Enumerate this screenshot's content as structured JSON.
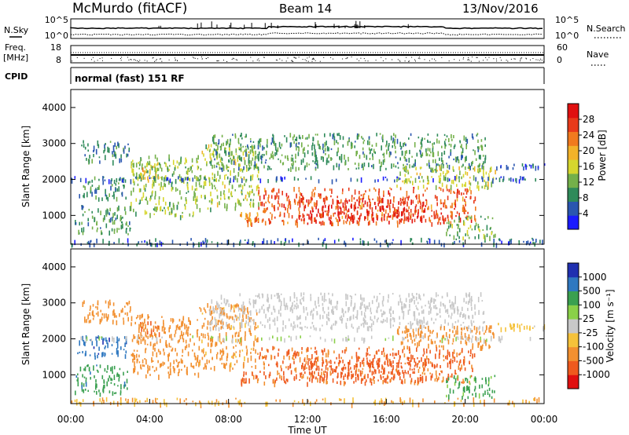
{
  "header": {
    "station": "McMurdo (fitACF)",
    "beam": "Beam 14",
    "date": "13/Nov/2016"
  },
  "noise_panel": {
    "left_label": "N.Sky",
    "right_label": "N.Search",
    "left_ticks": [
      "10^5",
      "10^0"
    ],
    "right_ticks": [
      "10^5",
      "10^0"
    ]
  },
  "freq_panel": {
    "left_label_line1": "Freq.",
    "left_label_line2": "[MHz]",
    "right_label": "Nave",
    "left_ticks": [
      "18",
      "8"
    ],
    "right_ticks": [
      "60",
      "0"
    ]
  },
  "cpid": {
    "label": "CPID",
    "mode": "normal (fast) 151 RF"
  },
  "x_axis": {
    "label": "Time UT",
    "ticks": [
      "00:00",
      "04:00",
      "08:00",
      "12:00",
      "16:00",
      "20:00",
      "00:00"
    ]
  },
  "power_panel": {
    "ylabel": "Slant Range [km]",
    "yticks": [
      "1000",
      "2000",
      "3000",
      "4000"
    ],
    "cbar_label": "Power [dB]",
    "cbar_ticks": [
      "4",
      "8",
      "12",
      "16",
      "20",
      "24",
      "28"
    ],
    "cbar_colors": [
      "#1a1aff",
      "#2a56b0",
      "#2f8a5a",
      "#74b04a",
      "#d6d62e",
      "#f2b22a",
      "#f07a1e",
      "#e83a1a",
      "#e01010"
    ]
  },
  "velocity_panel": {
    "ylabel": "Slant Range [km]",
    "yticks": [
      "1000",
      "2000",
      "3000",
      "4000"
    ],
    "cbar_label": "Velocity [m s⁻¹]",
    "cbar_ticks": [
      "1000",
      "500",
      "100",
      "25",
      "-25",
      "-100",
      "-500",
      "-1000"
    ],
    "cbar_colors": [
      "#2030b0",
      "#2f78c0",
      "#3aa050",
      "#8ad048",
      "#c8c8c8",
      "#f5c23a",
      "#f29030",
      "#ef5a1e",
      "#e01010"
    ]
  },
  "chart_data": [
    {
      "type": "heatmap",
      "title": "Power",
      "xlabel": "Time UT",
      "ylabel": "Slant Range [km]",
      "x_range_hours": [
        0,
        24
      ],
      "ylim": [
        200,
        4500
      ],
      "colorbar": {
        "label": "Power [dB]",
        "range": [
          0,
          32
        ],
        "ticks": [
          4,
          8,
          12,
          16,
          20,
          24,
          28
        ]
      },
      "echo_regions": [
        {
          "t0": 0.0,
          "t1": 24.0,
          "r0": 220,
          "r1": 380,
          "value": 6
        },
        {
          "t0": 0.2,
          "t1": 3.0,
          "r0": 500,
          "r1": 1300,
          "value": 10
        },
        {
          "t0": 0.3,
          "t1": 2.8,
          "r0": 1500,
          "r1": 2100,
          "value": 9
        },
        {
          "t0": 0.5,
          "t1": 3.0,
          "r0": 2500,
          "r1": 3100,
          "value": 8
        },
        {
          "t0": 3.0,
          "t1": 6.5,
          "r0": 1000,
          "r1": 2700,
          "value": 13
        },
        {
          "t0": 3.5,
          "t1": 4.5,
          "r0": 2000,
          "r1": 2500,
          "value": 18
        },
        {
          "t0": 6.5,
          "t1": 9.5,
          "r0": 1200,
          "r1": 3000,
          "value": 14
        },
        {
          "t0": 8.5,
          "t1": 9.5,
          "r0": 800,
          "r1": 1100,
          "value": 22
        },
        {
          "t0": 9.5,
          "t1": 20.5,
          "r0": 800,
          "r1": 1800,
          "value": 25
        },
        {
          "t0": 11.5,
          "t1": 18.0,
          "r0": 900,
          "r1": 1500,
          "value": 29
        },
        {
          "t0": 7.0,
          "t1": 21.0,
          "r0": 2300,
          "r1": 3300,
          "value": 10
        },
        {
          "t0": 16.5,
          "t1": 21.5,
          "r0": 1800,
          "r1": 2400,
          "value": 15
        },
        {
          "t0": 0.0,
          "t1": 24.0,
          "r0": 2000,
          "r1": 2100,
          "value": 5
        },
        {
          "t0": 19.0,
          "t1": 21.5,
          "r0": 400,
          "r1": 1000,
          "value": 12
        },
        {
          "t0": 21.5,
          "t1": 24.0,
          "r0": 2300,
          "r1": 2450,
          "value": 5
        }
      ]
    },
    {
      "type": "heatmap",
      "title": "Velocity",
      "xlabel": "Time UT",
      "ylabel": "Slant Range [km]",
      "x_range_hours": [
        0,
        24
      ],
      "ylim": [
        200,
        4500
      ],
      "colorbar": {
        "label": "Velocity [m s⁻¹]",
        "range": [
          -1000,
          1000
        ],
        "ticks": [
          1000,
          500,
          100,
          25,
          -25,
          -100,
          -500,
          -1000
        ]
      },
      "echo_regions": [
        {
          "t0": 0.0,
          "t1": 24.0,
          "r0": 220,
          "r1": 380,
          "value": -100
        },
        {
          "t0": 0.2,
          "t1": 3.0,
          "r0": 500,
          "r1": 1300,
          "value": 400
        },
        {
          "t0": 0.3,
          "t1": 2.8,
          "r0": 1500,
          "r1": 2100,
          "value": 800
        },
        {
          "t0": 0.5,
          "t1": 3.0,
          "r0": 2500,
          "r1": 3100,
          "value": -300
        },
        {
          "t0": 3.0,
          "t1": 6.5,
          "r0": 1000,
          "r1": 2700,
          "value": -200
        },
        {
          "t0": 3.5,
          "t1": 4.5,
          "r0": 2000,
          "r1": 2500,
          "value": -500
        },
        {
          "t0": 6.5,
          "t1": 9.5,
          "r0": 1200,
          "r1": 3000,
          "value": -150
        },
        {
          "t0": 8.5,
          "t1": 9.5,
          "r0": 800,
          "r1": 1100,
          "value": -500
        },
        {
          "t0": 9.5,
          "t1": 20.5,
          "r0": 800,
          "r1": 1800,
          "value": -550
        },
        {
          "t0": 11.5,
          "t1": 18.0,
          "r0": 900,
          "r1": 1500,
          "value": -700
        },
        {
          "t0": 7.0,
          "t1": 21.0,
          "r0": 2300,
          "r1": 3300,
          "value": 0
        },
        {
          "t0": 16.5,
          "t1": 21.5,
          "r0": 1800,
          "r1": 2400,
          "value": -250
        },
        {
          "t0": 0.0,
          "t1": 24.0,
          "r0": 2000,
          "r1": 2100,
          "value": 10
        },
        {
          "t0": 19.0,
          "t1": 21.5,
          "r0": 400,
          "r1": 1000,
          "value": 150
        },
        {
          "t0": 21.5,
          "t1": 24.0,
          "r0": 2300,
          "r1": 2450,
          "value": -50
        }
      ]
    }
  ]
}
